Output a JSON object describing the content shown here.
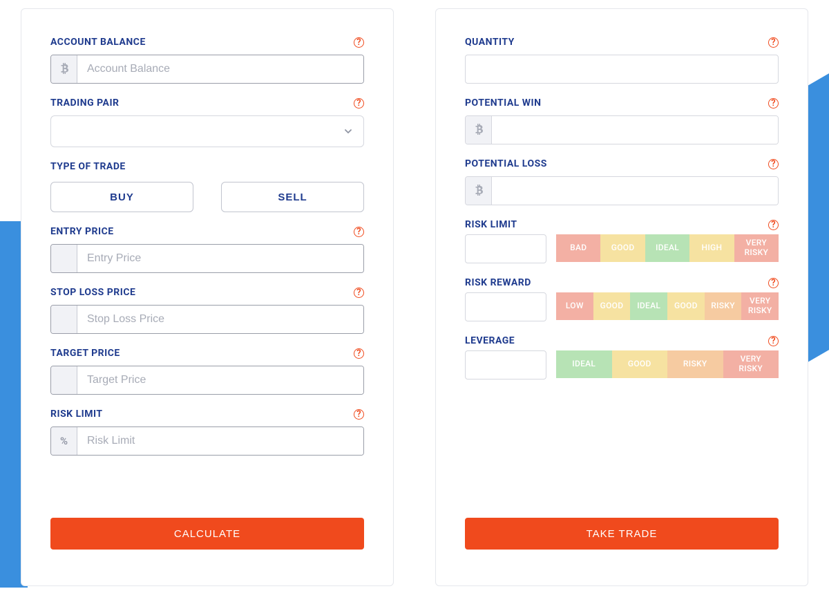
{
  "colors": {
    "primary_label": "#1f3b8e",
    "accent": "#f04a1d",
    "bg_accent": "#3a8fde",
    "input_border_strong": "#999da8",
    "input_border_soft": "#d5d7de",
    "placeholder": "#a7abb6"
  },
  "left": {
    "account_balance": {
      "label": "ACCOUNT BALANCE",
      "placeholder": "Account Balance",
      "prefix_icon": "btc"
    },
    "trading_pair": {
      "label": "TRADING PAIR"
    },
    "type_of_trade": {
      "label": "TYPE OF TRADE",
      "buy": "BUY",
      "sell": "SELL"
    },
    "entry_price": {
      "label": "ENTRY PRICE",
      "placeholder": "Entry Price"
    },
    "stop_loss": {
      "label": "STOP LOSS PRICE",
      "placeholder": "Stop Loss Price"
    },
    "target_price": {
      "label": "TARGET PRICE",
      "placeholder": "Target Price"
    },
    "risk_limit": {
      "label": "RISK LIMIT",
      "placeholder": "Risk Limit",
      "prefix": "%"
    },
    "calculate_btn": "CALCULATE"
  },
  "right": {
    "quantity": {
      "label": "QUANTITY"
    },
    "potential_win": {
      "label": "POTENTIAL WIN",
      "prefix_icon": "btc"
    },
    "potential_loss": {
      "label": "POTENTIAL LOSS",
      "prefix_icon": "btc"
    },
    "risk_limit": {
      "label": "RISK LIMIT",
      "segments": [
        {
          "text": "BAD",
          "color": "#f3b0a4"
        },
        {
          "text": "GOOD",
          "color": "#f6e2a1"
        },
        {
          "text": "IDEAL",
          "color": "#b7e3b5"
        },
        {
          "text": "HIGH",
          "color": "#f6e2a1"
        },
        {
          "text": "VERY RISKY",
          "color": "#f3b0a4"
        }
      ]
    },
    "risk_reward": {
      "label": "RISK REWARD",
      "segments": [
        {
          "text": "LOW",
          "color": "#f3b0a4"
        },
        {
          "text": "GOOD",
          "color": "#f6e2a1"
        },
        {
          "text": "IDEAL",
          "color": "#b7e3b5"
        },
        {
          "text": "GOOD",
          "color": "#f6e2a1"
        },
        {
          "text": "RISKY",
          "color": "#f6cba1"
        },
        {
          "text": "VERY RISKY",
          "color": "#f3b0a4"
        }
      ]
    },
    "leverage": {
      "label": "LEVERAGE",
      "segments": [
        {
          "text": "IDEAL",
          "color": "#b7e3b5"
        },
        {
          "text": "GOOD",
          "color": "#f6e2a1"
        },
        {
          "text": "RISKY",
          "color": "#f6cba1"
        },
        {
          "text": "VERY RISKY",
          "color": "#f3b0a4"
        }
      ]
    },
    "take_trade_btn": "TAKE TRADE"
  }
}
